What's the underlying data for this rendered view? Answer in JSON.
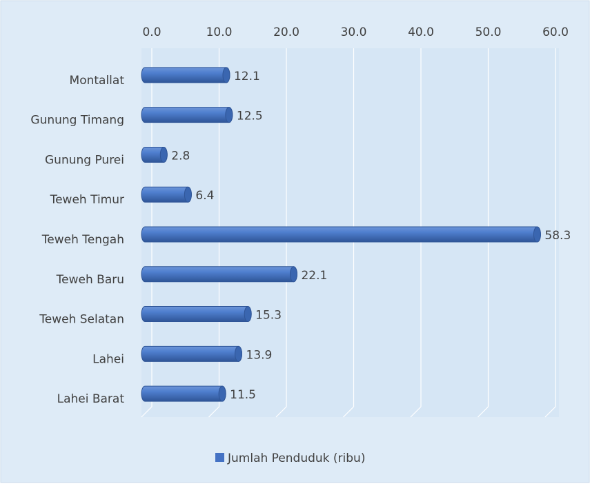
{
  "chart_data": {
    "type": "bar",
    "orientation": "horizontal",
    "categories": [
      "Montallat",
      "Gunung Timang",
      "Gunung Purei",
      "Teweh Timur",
      "Teweh Tengah",
      "Teweh Baru",
      "Teweh Selatan",
      "Lahei",
      "Lahei Barat"
    ],
    "series": [
      {
        "name": "Jumlah Penduduk (ribu)",
        "color": "#4472c4",
        "values": [
          12.1,
          12.5,
          2.8,
          6.4,
          58.3,
          22.1,
          15.3,
          13.9,
          11.5
        ]
      }
    ],
    "xlim": [
      0,
      60
    ],
    "xticks": [
      {
        "value": 0,
        "label": "0.0"
      },
      {
        "value": 10,
        "label": "10.0"
      },
      {
        "value": 20,
        "label": "20.0"
      },
      {
        "value": 30,
        "label": "30.0"
      },
      {
        "value": 40,
        "label": "40.0"
      },
      {
        "value": 50,
        "label": "50.0"
      },
      {
        "value": 60,
        "label": "60.0"
      }
    ],
    "grid": true,
    "legend": "bottom"
  }
}
